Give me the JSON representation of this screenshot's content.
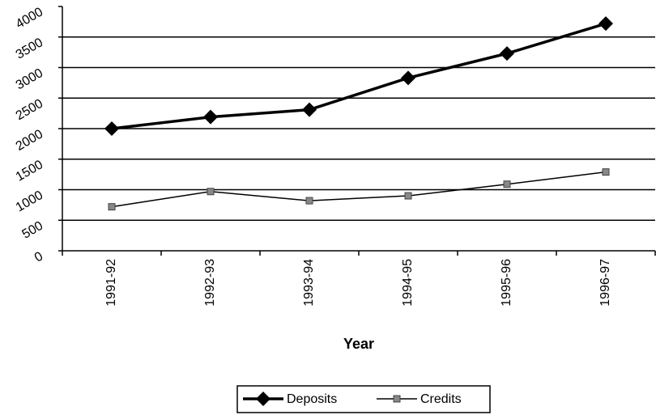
{
  "chart_data": {
    "type": "line",
    "x_label": "Year",
    "categories": [
      "1991-92",
      "1992-93",
      "1993-94",
      "1994-95",
      "1995-96",
      "1996-97"
    ],
    "series": [
      {
        "name": "Deposits",
        "color": "#000000",
        "values": [
          2000,
          2190,
          2310,
          2830,
          3230,
          3720
        ]
      },
      {
        "name": "Credits",
        "color": "#000000",
        "values": [
          720,
          970,
          820,
          900,
          1090,
          1290
        ]
      }
    ],
    "ylim": [
      0,
      4000
    ],
    "yticks": [
      0,
      500,
      1000,
      1500,
      2000,
      2500,
      3000,
      3500,
      4000
    ],
    "grid": true,
    "legend": "bottom"
  }
}
